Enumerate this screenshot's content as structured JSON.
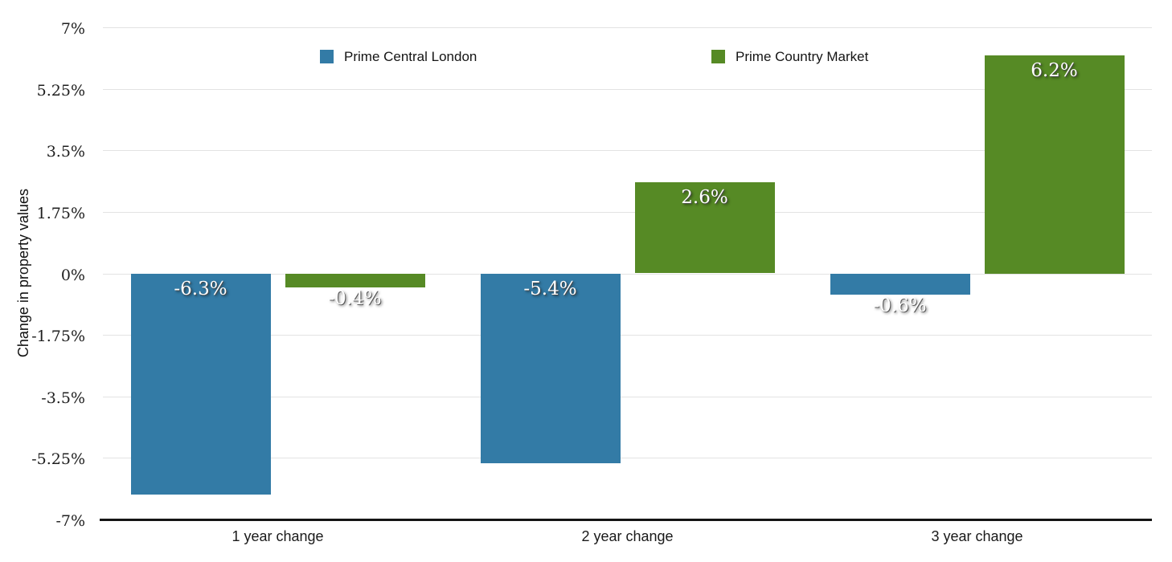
{
  "chart_data": {
    "type": "bar",
    "title": "",
    "xlabel": "",
    "ylabel": "Change in property values",
    "categories": [
      "1 year change",
      "2 year change",
      "3 year change"
    ],
    "series": [
      {
        "name": "Prime Central London",
        "color": "#337BA6",
        "values": [
          -6.3,
          -5.4,
          -0.6
        ],
        "labels": [
          "-6.3%",
          "-5.4%",
          "-0.6%"
        ]
      },
      {
        "name": "Prime Country Market",
        "color": "#568A25",
        "values": [
          -0.4,
          2.6,
          6.2
        ],
        "labels": [
          "-0.4%",
          "2.6%",
          "6.2%"
        ]
      }
    ],
    "ylim": [
      -7,
      7
    ],
    "yticks": [
      {
        "value": 7,
        "label": "7%"
      },
      {
        "value": 5.25,
        "label": "5.25%"
      },
      {
        "value": 3.5,
        "label": "3.5%"
      },
      {
        "value": 1.75,
        "label": "1.75%"
      },
      {
        "value": 0,
        "label": "0%"
      },
      {
        "value": -1.75,
        "label": "-1.75%"
      },
      {
        "value": -3.5,
        "label": "-3.5%"
      },
      {
        "value": -5.25,
        "label": "-5.25%"
      },
      {
        "value": -7,
        "label": "-7%"
      }
    ],
    "grid": "horizontal",
    "legend_position": "top",
    "background_color": "#ffffff",
    "gridline_color": "#e3e3e3",
    "axis_line_color": "#141414",
    "data_label_color": "#ffffff"
  }
}
